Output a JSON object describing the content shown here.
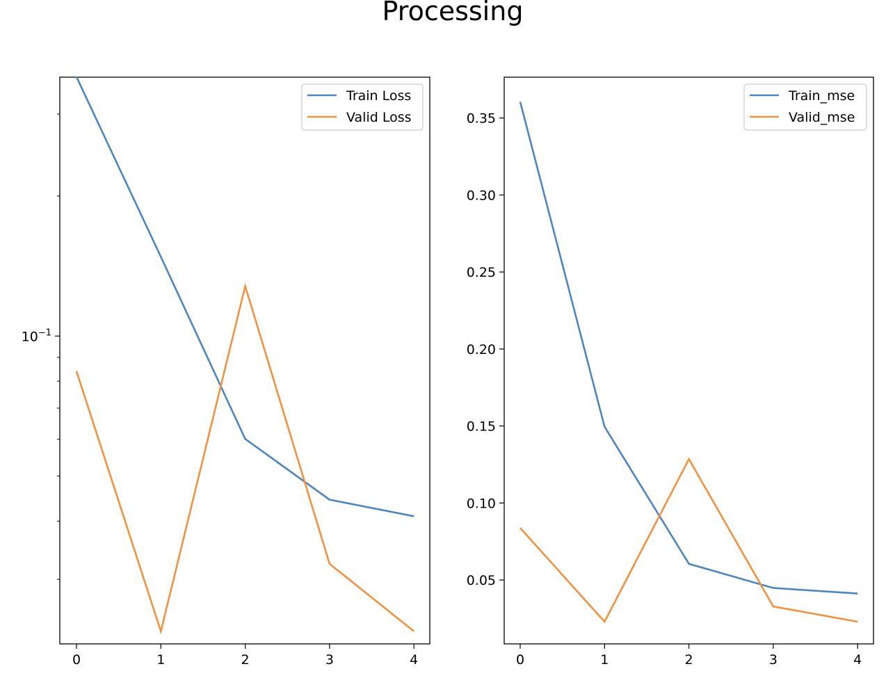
{
  "figure": {
    "title": "Processing"
  },
  "chart_data": [
    {
      "type": "line",
      "title": "",
      "xlabel": "",
      "ylabel": "",
      "yscale": "log",
      "x": [
        0,
        1,
        2,
        3,
        4
      ],
      "xticks": [
        "0",
        "1",
        "2",
        "3",
        "4"
      ],
      "ytick_label": "10^-1",
      "ylim": [
        0.0218,
        0.36
      ],
      "series": [
        {
          "name": "Train Loss",
          "color": "#4c86c2",
          "values": [
            0.3605,
            0.148,
            0.0601,
            0.0445,
            0.041
          ]
        },
        {
          "name": "Valid Loss",
          "color": "#f5913c",
          "values": [
            0.084,
            0.0232,
            0.128,
            0.0324,
            0.0232
          ]
        }
      ],
      "legend": "top-right",
      "grid": false
    },
    {
      "type": "line",
      "title": "",
      "xlabel": "",
      "ylabel": "",
      "yscale": "linear",
      "x": [
        0,
        1,
        2,
        3,
        4
      ],
      "xticks": [
        "0",
        "1",
        "2",
        "3",
        "4"
      ],
      "yticks": [
        "0.05",
        "0.10",
        "0.15",
        "0.20",
        "0.25",
        "0.30",
        "0.35"
      ],
      "ylim": [
        0.0085,
        0.3765
      ],
      "series": [
        {
          "name": "Train_mse",
          "color": "#4c86c2",
          "values": [
            0.3605,
            0.1495,
            0.0605,
            0.0448,
            0.0412
          ]
        },
        {
          "name": "Valid_mse",
          "color": "#f5913c",
          "values": [
            0.0838,
            0.0229,
            0.1285,
            0.0328,
            0.0229
          ]
        }
      ],
      "legend": "top-right",
      "grid": false
    }
  ]
}
